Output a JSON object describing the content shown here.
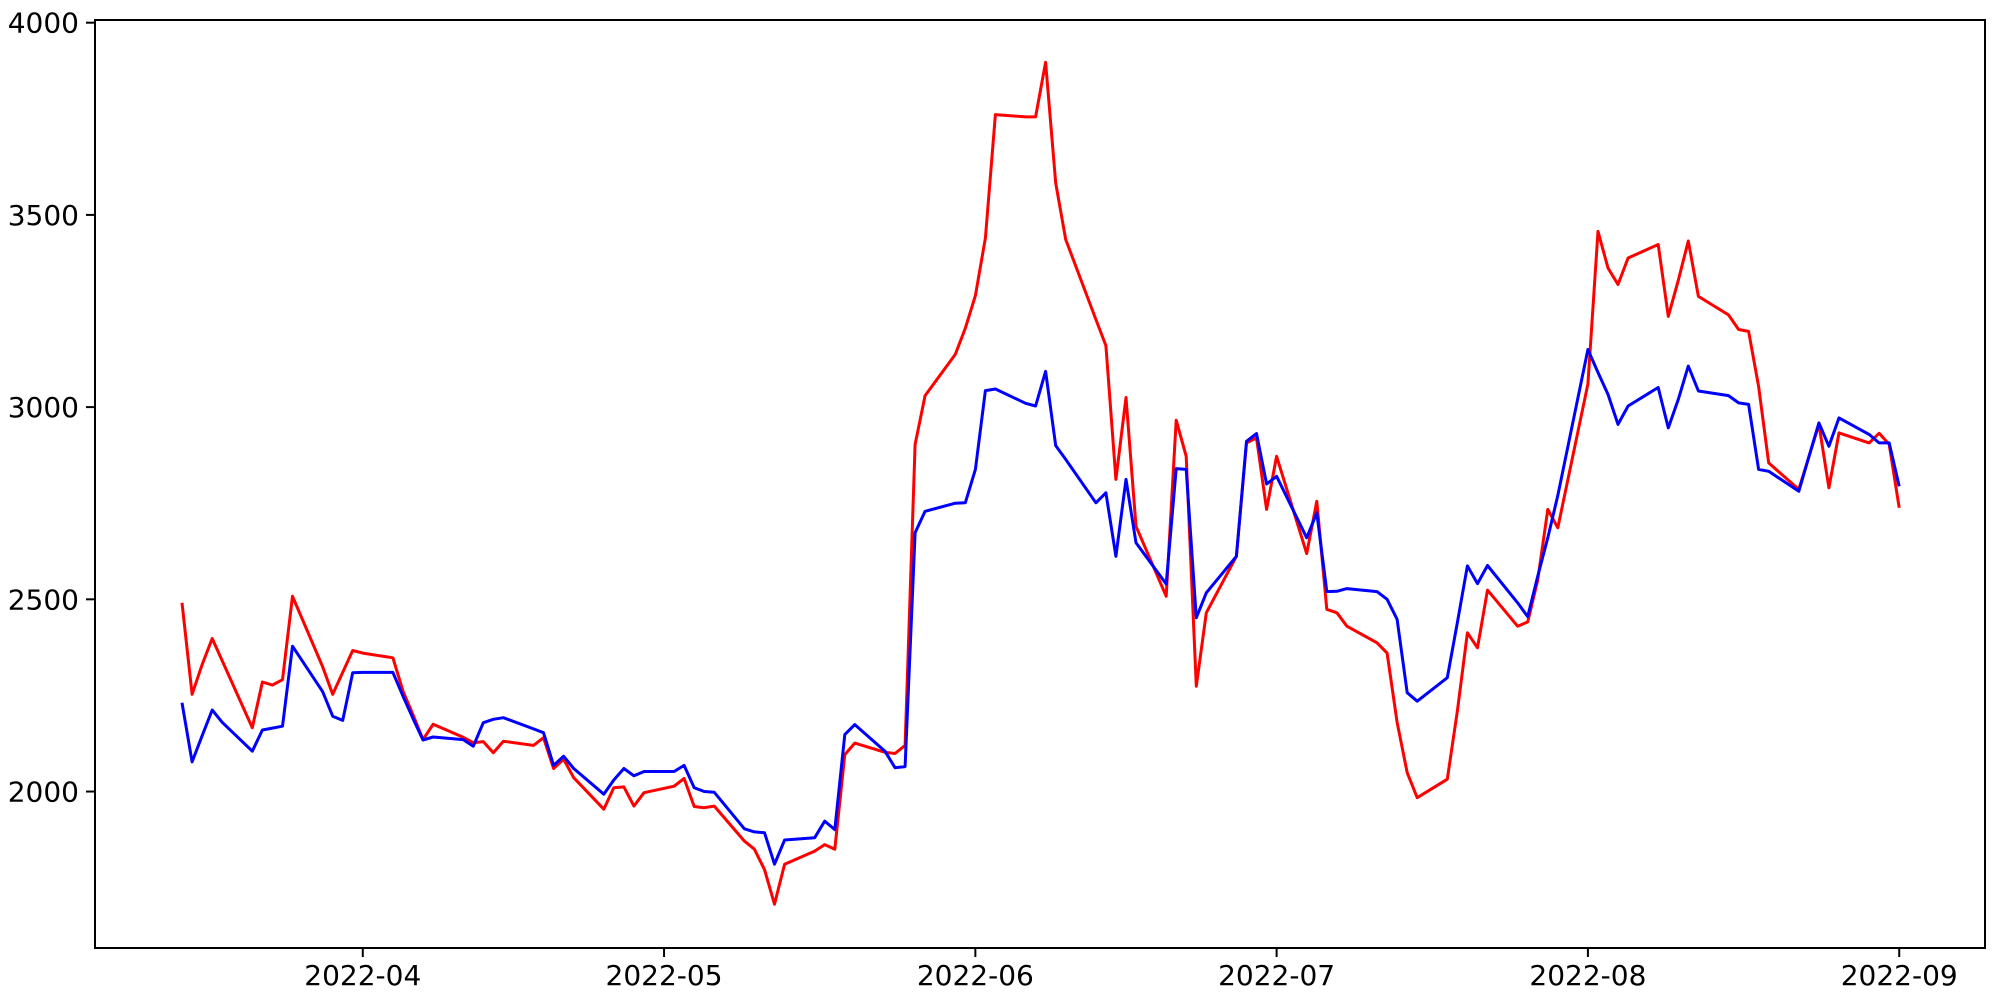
{
  "figure": {
    "background": "#ffffff",
    "text_color": "#000000"
  },
  "chart_data": {
    "type": "line",
    "title": "",
    "xlabel": "",
    "ylabel": "",
    "grid": false,
    "legend": null,
    "xlim": [
      "2022-03-05T08:00:00Z",
      "2022-09-09T13:00:00Z"
    ],
    "ylim": [
      1593,
      4007
    ],
    "yticks": [
      {
        "value": 2000,
        "label": "2000"
      },
      {
        "value": 2500,
        "label": "2500"
      },
      {
        "value": 3000,
        "label": "3000"
      },
      {
        "value": 3500,
        "label": "3500"
      },
      {
        "value": 4000,
        "label": "4000"
      }
    ],
    "xticks": [
      {
        "date": "2022-04-01",
        "label": "2022-04"
      },
      {
        "date": "2022-05-01",
        "label": "2022-05"
      },
      {
        "date": "2022-06-01",
        "label": "2022-06"
      },
      {
        "date": "2022-07-01",
        "label": "2022-07"
      },
      {
        "date": "2022-08-01",
        "label": "2022-08"
      },
      {
        "date": "2022-09-01",
        "label": "2022-09"
      }
    ],
    "x": [
      "2022-03-14",
      "2022-03-15",
      "2022-03-16",
      "2022-03-17",
      "2022-03-18",
      "2022-03-21",
      "2022-03-22",
      "2022-03-23",
      "2022-03-24",
      "2022-03-25",
      "2022-03-28",
      "2022-03-29",
      "2022-03-30",
      "2022-03-31",
      "2022-04-01",
      "2022-04-04",
      "2022-04-05",
      "2022-04-06",
      "2022-04-07",
      "2022-04-08",
      "2022-04-11",
      "2022-04-12",
      "2022-04-13",
      "2022-04-14",
      "2022-04-15",
      "2022-04-18",
      "2022-04-19",
      "2022-04-20",
      "2022-04-21",
      "2022-04-22",
      "2022-04-25",
      "2022-04-26",
      "2022-04-27",
      "2022-04-28",
      "2022-04-29",
      "2022-05-02",
      "2022-05-03",
      "2022-05-04",
      "2022-05-05",
      "2022-05-06",
      "2022-05-09",
      "2022-05-10",
      "2022-05-11",
      "2022-05-12",
      "2022-05-13",
      "2022-05-16",
      "2022-05-17",
      "2022-05-18",
      "2022-05-19",
      "2022-05-20",
      "2022-05-23",
      "2022-05-24",
      "2022-05-25",
      "2022-05-26",
      "2022-05-27",
      "2022-05-30",
      "2022-05-31",
      "2022-06-01",
      "2022-06-02",
      "2022-06-03",
      "2022-06-06",
      "2022-06-07",
      "2022-06-08",
      "2022-06-09",
      "2022-06-10",
      "2022-06-13",
      "2022-06-14",
      "2022-06-15",
      "2022-06-16",
      "2022-06-17",
      "2022-06-20",
      "2022-06-21",
      "2022-06-22",
      "2022-06-23",
      "2022-06-24",
      "2022-06-27",
      "2022-06-28",
      "2022-06-29",
      "2022-06-30",
      "2022-07-01",
      "2022-07-04",
      "2022-07-05",
      "2022-07-06",
      "2022-07-07",
      "2022-07-08",
      "2022-07-11",
      "2022-07-12",
      "2022-07-13",
      "2022-07-14",
      "2022-07-15",
      "2022-07-18",
      "2022-07-19",
      "2022-07-20",
      "2022-07-21",
      "2022-07-22",
      "2022-07-25",
      "2022-07-26",
      "2022-07-27",
      "2022-07-28",
      "2022-07-29",
      "2022-08-01",
      "2022-08-02",
      "2022-08-03",
      "2022-08-04",
      "2022-08-05",
      "2022-08-08",
      "2022-08-09",
      "2022-08-10",
      "2022-08-11",
      "2022-08-12",
      "2022-08-15",
      "2022-08-16",
      "2022-08-17",
      "2022-08-18",
      "2022-08-19",
      "2022-08-22",
      "2022-08-23",
      "2022-08-24",
      "2022-08-25",
      "2022-08-26",
      "2022-08-29",
      "2022-08-30",
      "2022-08-31",
      "2022-09-01"
    ],
    "series": [
      {
        "name": "red-series",
        "color": "#ff0000",
        "values": [
          2491,
          2253,
          2330,
          2398,
          2340,
          2166,
          2285,
          2277,
          2291,
          2508,
          2325,
          2253,
          2310,
          2367,
          2360,
          2348,
          2261,
          2200,
          2135,
          2175,
          2141,
          2127,
          2130,
          2101,
          2131,
          2120,
          2140,
          2060,
          2084,
          2036,
          1954,
          2010,
          2012,
          1962,
          1997,
          2014,
          2034,
          1961,
          1958,
          1962,
          1871,
          1850,
          1797,
          1707,
          1811,
          1845,
          1862,
          1850,
          2096,
          2126,
          2102,
          2099,
          2120,
          2903,
          3030,
          3137,
          3205,
          3290,
          3440,
          3761,
          3755,
          3755,
          3897,
          3583,
          3436,
          3228,
          3160,
          2812,
          3025,
          2690,
          2508,
          2966,
          2872,
          2274,
          2465,
          2612,
          2907,
          2920,
          2734,
          2872,
          2619,
          2755,
          2474,
          2465,
          2430,
          2387,
          2360,
          2180,
          2049,
          1984,
          2032,
          2210,
          2413,
          2374,
          2524,
          2430,
          2441,
          2550,
          2734,
          2686,
          3060,
          3457,
          3362,
          3319,
          3388,
          3423,
          3236,
          3330,
          3432,
          3288,
          3240,
          3202,
          3197,
          3054,
          2855,
          2786,
          2870,
          2955,
          2790,
          2933,
          2907,
          2932,
          2903,
          2738
        ]
      },
      {
        "name": "blue-series",
        "color": "#0000ff",
        "values": [
          2231,
          2077,
          2145,
          2212,
          2180,
          2105,
          2160,
          2165,
          2170,
          2378,
          2260,
          2196,
          2185,
          2309,
          2310,
          2310,
          2248,
          2190,
          2134,
          2142,
          2135,
          2118,
          2179,
          2188,
          2192,
          2163,
          2153,
          2068,
          2092,
          2060,
          1993,
          2030,
          2060,
          2041,
          2052,
          2052,
          2068,
          2010,
          2000,
          1998,
          1903,
          1895,
          1893,
          1811,
          1874,
          1880,
          1923,
          1901,
          2148,
          2174,
          2105,
          2062,
          2065,
          2673,
          2729,
          2750,
          2751,
          2838,
          3043,
          3047,
          3010,
          3003,
          3093,
          2900,
          2864,
          2751,
          2777,
          2612,
          2812,
          2647,
          2540,
          2840,
          2838,
          2452,
          2517,
          2612,
          2911,
          2931,
          2800,
          2820,
          2660,
          2725,
          2520,
          2521,
          2528,
          2520,
          2500,
          2448,
          2257,
          2235,
          2296,
          2440,
          2587,
          2541,
          2588,
          2491,
          2455,
          2560,
          2660,
          2770,
          3150,
          3090,
          3033,
          2955,
          3003,
          3051,
          2946,
          3020,
          3107,
          3042,
          3030,
          3011,
          3007,
          2838,
          2833,
          2781,
          2870,
          2959,
          2898,
          2972,
          2929,
          2907,
          2907,
          2794
        ]
      }
    ]
  }
}
